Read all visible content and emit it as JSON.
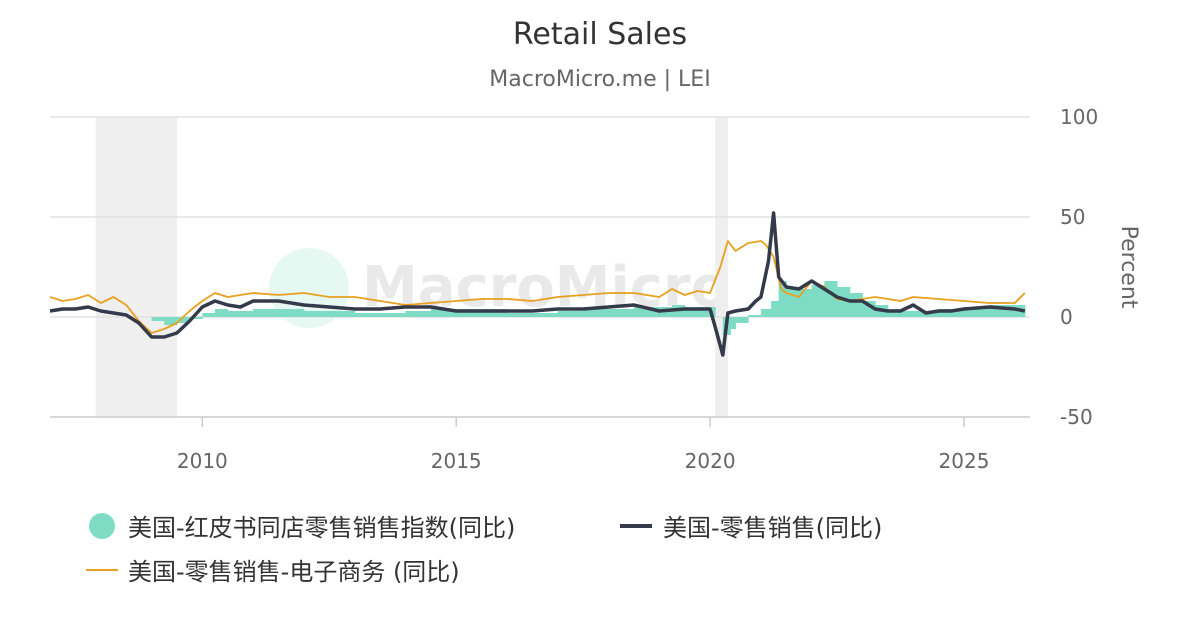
{
  "colors": {
    "bar": "#7fdcc4",
    "retail": "#353a4a",
    "ecommerce": "#e8a020",
    "grid": "#e2e2e2",
    "recession": "#efefef"
  },
  "chart_data": {
    "type": "line",
    "title": "Retail Sales",
    "subtitle": "MacroMicro.me | LEI",
    "watermark": "MacroMicro",
    "ylabel": "Percent",
    "ylim": [
      -50,
      100
    ],
    "y_ticks": [
      "100",
      "50",
      "0",
      "-50"
    ],
    "y_tick_values": [
      100,
      50,
      0,
      -50
    ],
    "xlim": [
      2007.0,
      2026.3
    ],
    "x_ticks": [
      "2010",
      "2015",
      "2020",
      "2025"
    ],
    "x_tick_values": [
      2010,
      2015,
      2020,
      2025
    ],
    "grid": true,
    "legend_position": "bottom",
    "recession_shading": [
      [
        2007.9,
        2009.5
      ],
      [
        2020.1,
        2020.35
      ]
    ],
    "series": [
      {
        "name": "美国-红皮书同店零售销售指数(同比)",
        "type": "column",
        "color_key": "bar",
        "x": [
          2009.0,
          2009.25,
          2009.5,
          2009.75,
          2010.0,
          2010.25,
          2010.5,
          2010.75,
          2011.0,
          2011.5,
          2012.0,
          2012.5,
          2013.0,
          2013.5,
          2014.0,
          2014.5,
          2015.0,
          2015.5,
          2016.0,
          2016.5,
          2017.0,
          2017.5,
          2018.0,
          2018.5,
          2019.0,
          2019.25,
          2019.5,
          2019.75,
          2020.0,
          2020.1,
          2020.25,
          2020.4,
          2020.5,
          2020.75,
          2021.0,
          2021.2,
          2021.35,
          2021.5,
          2021.75,
          2022.0,
          2022.25,
          2022.5,
          2022.75,
          2023.0,
          2023.25,
          2023.5,
          2023.75,
          2024.0,
          2024.5,
          2025.0,
          2025.5,
          2026.0,
          2026.2
        ],
        "values": [
          -2,
          -4,
          -3,
          -1,
          2,
          4,
          3,
          3,
          4,
          4,
          3,
          3,
          2,
          2,
          3,
          4,
          4,
          4,
          2,
          2,
          3,
          4,
          4,
          5,
          5,
          6,
          5,
          5,
          5,
          0,
          -9,
          -6,
          -3,
          1,
          4,
          8,
          18,
          15,
          14,
          16,
          18,
          15,
          12,
          8,
          6,
          4,
          3,
          3,
          4,
          5,
          6,
          6,
          7
        ]
      },
      {
        "name": "美国-零售销售(同比)",
        "type": "line",
        "color_key": "retail",
        "x": [
          2007.0,
          2007.25,
          2007.5,
          2007.75,
          2008.0,
          2008.25,
          2008.5,
          2008.75,
          2009.0,
          2009.25,
          2009.5,
          2009.75,
          2010.0,
          2010.25,
          2010.5,
          2010.75,
          2011.0,
          2011.5,
          2012.0,
          2012.5,
          2013.0,
          2013.5,
          2014.0,
          2014.5,
          2015.0,
          2015.5,
          2016.0,
          2016.5,
          2017.0,
          2017.5,
          2018.0,
          2018.5,
          2019.0,
          2019.5,
          2020.0,
          2020.1,
          2020.25,
          2020.35,
          2020.5,
          2020.75,
          2020.9,
          2021.0,
          2021.15,
          2021.25,
          2021.35,
          2021.5,
          2021.75,
          2022.0,
          2022.25,
          2022.5,
          2022.75,
          2023.0,
          2023.25,
          2023.5,
          2023.75,
          2024.0,
          2024.25,
          2024.5,
          2024.75,
          2025.0,
          2025.5,
          2026.0,
          2026.2
        ],
        "values": [
          3,
          4,
          4,
          5,
          3,
          2,
          1,
          -3,
          -10,
          -10,
          -8,
          -2,
          5,
          8,
          6,
          5,
          8,
          8,
          6,
          5,
          4,
          4,
          5,
          5,
          3,
          3,
          3,
          3,
          4,
          4,
          5,
          6,
          3,
          4,
          4,
          -5,
          -19,
          2,
          3,
          4,
          8,
          10,
          28,
          52,
          20,
          15,
          14,
          18,
          14,
          10,
          8,
          8,
          4,
          3,
          3,
          6,
          2,
          3,
          3,
          4,
          5,
          4,
          3
        ]
      },
      {
        "name": "美国-零售销售-电子商务 (同比)",
        "type": "line",
        "color_key": "ecommerce",
        "x": [
          2007.0,
          2007.25,
          2007.5,
          2007.75,
          2008.0,
          2008.25,
          2008.5,
          2008.75,
          2009.0,
          2009.25,
          2009.5,
          2009.75,
          2010.0,
          2010.25,
          2010.5,
          2010.75,
          2011.0,
          2011.5,
          2012.0,
          2012.5,
          2013.0,
          2013.5,
          2014.0,
          2014.5,
          2015.0,
          2015.5,
          2016.0,
          2016.5,
          2017.0,
          2017.5,
          2018.0,
          2018.5,
          2019.0,
          2019.25,
          2019.5,
          2019.75,
          2020.0,
          2020.2,
          2020.35,
          2020.5,
          2020.75,
          2021.0,
          2021.1,
          2021.25,
          2021.4,
          2021.5,
          2021.75,
          2022.0,
          2022.25,
          2022.5,
          2022.75,
          2023.0,
          2023.25,
          2023.5,
          2023.75,
          2024.0,
          2024.5,
          2025.0,
          2025.5,
          2026.0,
          2026.2
        ],
        "values": [
          10,
          8,
          9,
          11,
          7,
          10,
          6,
          -2,
          -8,
          -6,
          -3,
          3,
          8,
          12,
          10,
          11,
          12,
          11,
          12,
          10,
          10,
          8,
          6,
          7,
          8,
          9,
          9,
          8,
          10,
          11,
          12,
          12,
          10,
          14,
          11,
          13,
          12,
          25,
          38,
          33,
          37,
          38,
          36,
          30,
          14,
          12,
          10,
          18,
          15,
          9,
          8,
          9,
          10,
          9,
          8,
          10,
          9,
          8,
          7,
          7,
          12
        ]
      }
    ]
  }
}
